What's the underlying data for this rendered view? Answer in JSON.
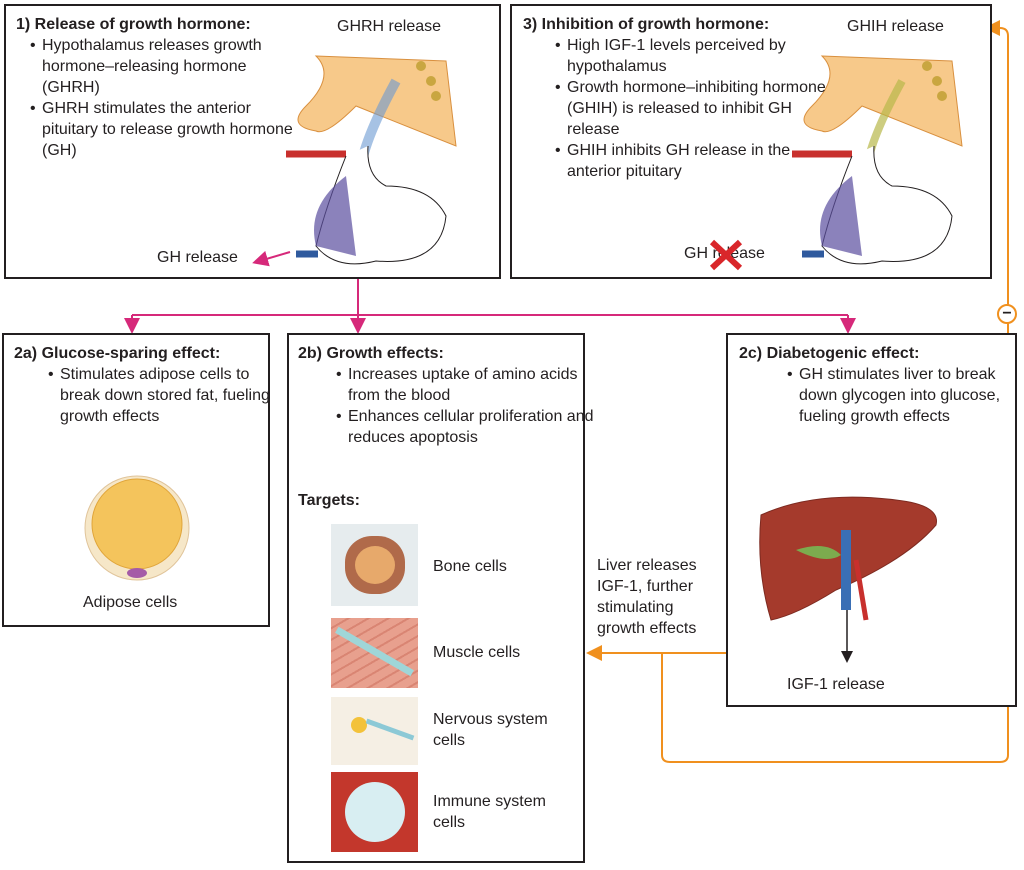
{
  "step1": {
    "title": "1) Release of growth hormone:",
    "bullets": [
      "Hypothalamus releases growth hormone–releasing hormone (GHRH)",
      "GHRH stimulates the anterior pituitary to release growth hormone (GH)"
    ],
    "top_label": "GHRH release",
    "bottom_label": "GH release"
  },
  "step3": {
    "title": "3) Inhibition of growth hormone:",
    "bullets": [
      "High IGF-1 levels perceived by hypothalamus",
      "Growth hormone–inhibiting hormone (GHIH) is released to inhibit GH release",
      "GHIH inhibits GH release in the anterior pituitary"
    ],
    "top_label": "GHIH release",
    "bottom_label": "GH release"
  },
  "step2a": {
    "title": "2a) Glucose-sparing effect:",
    "bullets": [
      "Stimulates adipose cells to break down stored fat, fueling growth effects"
    ],
    "image_label": "Adipose cells"
  },
  "step2b": {
    "title": "2b) Growth effects:",
    "bullets": [
      "Increases uptake of amino acids from the blood",
      "Enhances cellular proliferation and reduces apoptosis"
    ],
    "targets_label": "Targets:",
    "targets": [
      "Bone cells",
      "Muscle cells",
      "Nervous system cells",
      "Immune system cells"
    ]
  },
  "step2c": {
    "title": "2c) Diabetogenic effect:",
    "bullets": [
      "GH stimulates liver to break down glycogen into glucose, fueling growth effects"
    ],
    "image_label": "IGF-1 release"
  },
  "feedback": {
    "liver_text": "Liver releases IGF-1, further stimulating growth effects",
    "inhibit_symbol": "−"
  },
  "colors": {
    "stimulation_arrow": "#d6297a",
    "feedback_arrow": "#f0901e",
    "inhibit_x": "#d9262a"
  }
}
